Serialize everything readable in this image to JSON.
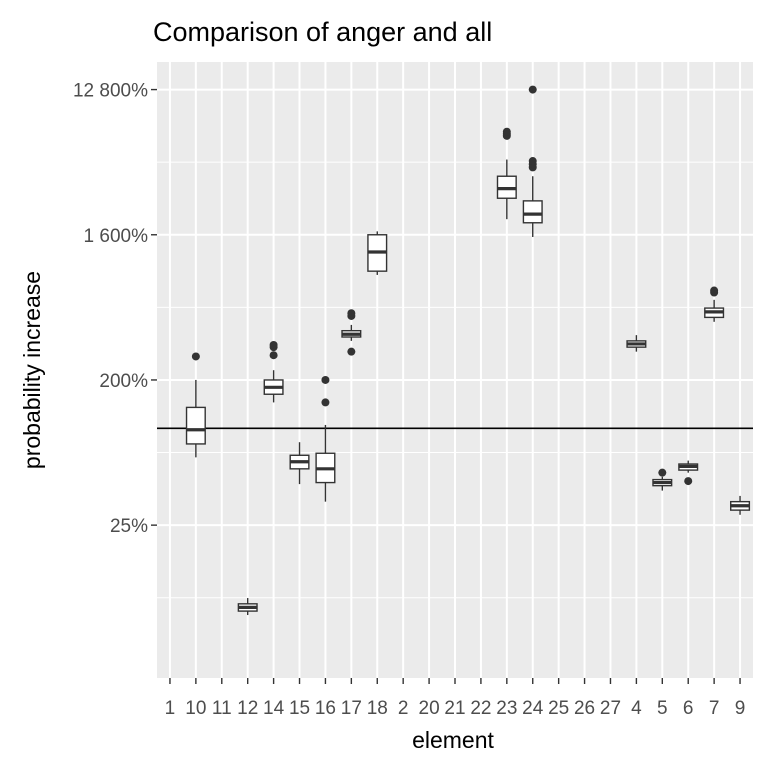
{
  "chart_data": {
    "type": "box",
    "title": "Comparison of anger and all",
    "xlabel": "element",
    "ylabel": "probability increase",
    "y_scale": "log2",
    "y_ticks": [
      {
        "value": 0.25,
        "label": "25%"
      },
      {
        "value": 2,
        "label": "200%"
      },
      {
        "value": 16,
        "label": "1 600%"
      },
      {
        "value": 128,
        "label": "12 800%"
      }
    ],
    "ylim": [
      0.028,
      190
    ],
    "reference_line": 1,
    "grid": true,
    "legend": "none",
    "colors": {
      "panel": "#ebebeb",
      "grid": "#ffffff",
      "box_fill": "#ffffff",
      "box_line": "#333333",
      "reference_line": "#000000"
    },
    "categories": [
      "1",
      "10",
      "11",
      "12",
      "14",
      "15",
      "16",
      "17",
      "18",
      "2",
      "20",
      "21",
      "22",
      "23",
      "24",
      "25",
      "26",
      "27",
      "4",
      "5",
      "6",
      "7",
      "9"
    ],
    "boxes": [
      {
        "category": "10",
        "whisker_low": 0.66,
        "q1": 0.8,
        "median": 0.98,
        "q3": 1.35,
        "whisker_high": 2.0,
        "outliers": [
          2.8
        ]
      },
      {
        "category": "12",
        "whisker_low": 0.069,
        "q1": 0.073,
        "median": 0.077,
        "q3": 0.081,
        "whisker_high": 0.088,
        "outliers": []
      },
      {
        "category": "14",
        "whisker_low": 1.45,
        "q1": 1.63,
        "median": 1.8,
        "q3": 2.0,
        "whisker_high": 2.3,
        "outliers": [
          2.85,
          3.2,
          3.3
        ]
      },
      {
        "category": "15",
        "whisker_low": 0.45,
        "q1": 0.56,
        "median": 0.62,
        "q3": 0.68,
        "whisker_high": 0.82,
        "outliers": []
      },
      {
        "category": "16",
        "whisker_low": 0.35,
        "q1": 0.46,
        "median": 0.56,
        "q3": 0.7,
        "whisker_high": 1.05,
        "outliers": [
          1.45,
          2.0
        ]
      },
      {
        "category": "17",
        "whisker_low": 3.5,
        "q1": 3.7,
        "median": 3.85,
        "q3": 4.05,
        "whisker_high": 4.4,
        "outliers": [
          3.0,
          5.0,
          5.2
        ]
      },
      {
        "category": "18",
        "whisker_low": 9.0,
        "q1": 9.5,
        "median": 12.5,
        "q3": 16.0,
        "whisker_high": 16.8,
        "outliers": []
      },
      {
        "category": "23",
        "whisker_low": 20.0,
        "q1": 27.0,
        "median": 31.0,
        "q3": 37.0,
        "whisker_high": 47.0,
        "outliers": [
          66.0,
          68.0,
          70.0
        ]
      },
      {
        "category": "24",
        "whisker_low": 15.5,
        "q1": 19.0,
        "median": 21.5,
        "q3": 26.0,
        "whisker_high": 37.0,
        "outliers": [
          42.0,
          44.0,
          46.0,
          128.0
        ]
      },
      {
        "category": "4",
        "whisker_low": 3.0,
        "q1": 3.2,
        "median": 3.35,
        "q3": 3.5,
        "whisker_high": 3.8,
        "outliers": []
      },
      {
        "category": "5",
        "whisker_low": 0.41,
        "q1": 0.44,
        "median": 0.46,
        "q3": 0.48,
        "whisker_high": 0.5,
        "outliers": [
          0.53
        ]
      },
      {
        "category": "6",
        "whisker_low": 0.53,
        "q1": 0.55,
        "median": 0.58,
        "q3": 0.6,
        "whisker_high": 0.63,
        "outliers": [
          0.47
        ]
      },
      {
        "category": "7",
        "whisker_low": 4.6,
        "q1": 4.9,
        "median": 5.3,
        "q3": 5.6,
        "whisker_high": 6.3,
        "outliers": [
          7.0,
          7.2
        ]
      },
      {
        "category": "9",
        "whisker_low": 0.29,
        "q1": 0.31,
        "median": 0.33,
        "q3": 0.35,
        "whisker_high": 0.38,
        "outliers": []
      }
    ]
  }
}
